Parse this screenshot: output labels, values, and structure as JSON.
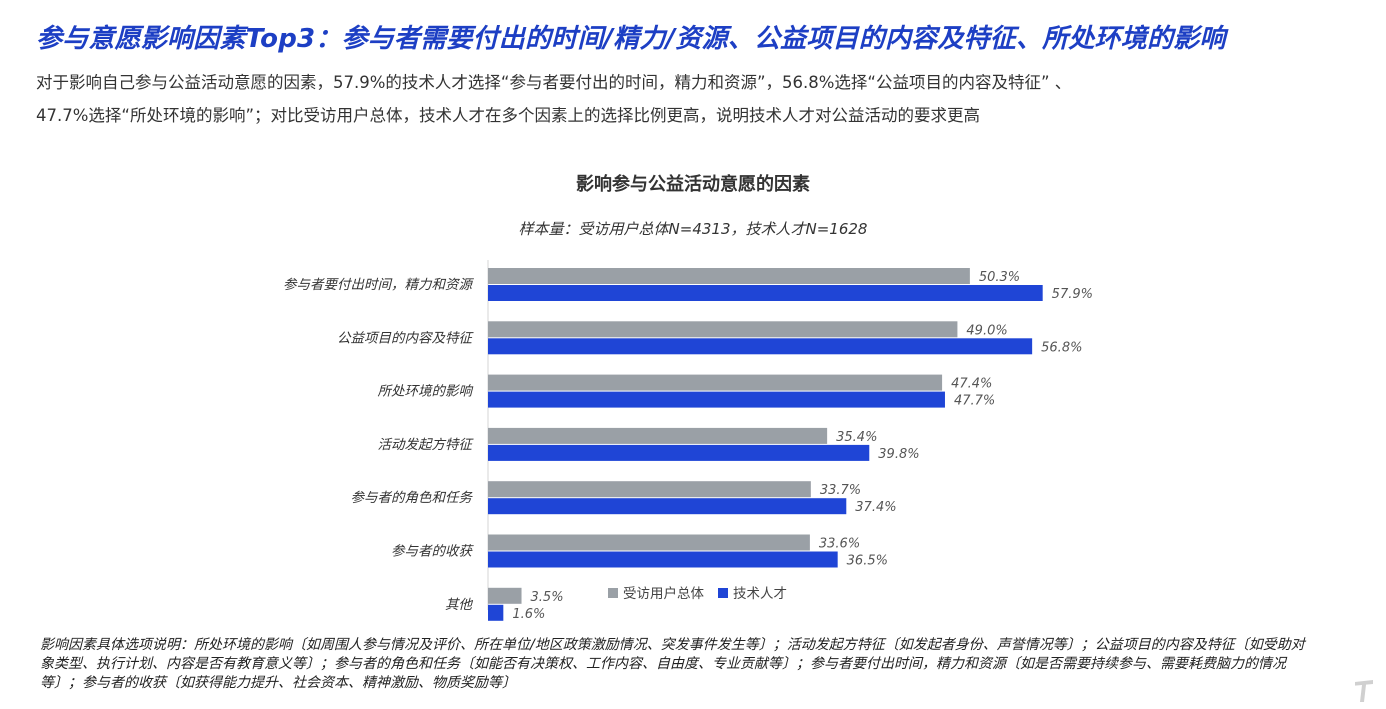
{
  "headline": "参与意愿影响因素Top3：参与者需要付出的时间/精力/资源、公益项目的内容及特征、所处环境的影响",
  "description": [
    "对于影响自己参与公益活动意愿的因素，57.9%的技术人才选择“参与者要付出的时间，精力和资源”，56.8%选择“公益项目的内容及特征”  、",
    "47.7%选择“所处环境的影响”；对比受访用户总体，技术人才在多个因素上的选择比例更高，说明技术人才对公益活动的要求更高"
  ],
  "chart_data": {
    "type": "bar",
    "orientation": "horizontal",
    "title": "影响参与公益活动意愿的因素",
    "subtitle": "样本量：受访用户总体N=4313，技术人才N=1628",
    "categories": [
      "参与者要付出时间，精力和资源",
      "公益项目的内容及特征",
      "所处环境的影响",
      "活动发起方特征",
      "参与者的角色和任务",
      "参与者的收获",
      "其他"
    ],
    "series": [
      {
        "name": "受访用户总体",
        "color": "#9aa0a6",
        "values": [
          50.3,
          49.0,
          47.4,
          35.4,
          33.7,
          33.6,
          3.5
        ],
        "labels": [
          "50.3%",
          "49.0%",
          "47.4%",
          "35.4%",
          "33.7%",
          "33.6%",
          "3.5%"
        ]
      },
      {
        "name": "技术人才",
        "color": "#1f45d6",
        "values": [
          57.9,
          56.8,
          47.7,
          39.8,
          37.4,
          36.5,
          1.6
        ],
        "labels": [
          "57.9%",
          "56.8%",
          "47.7%",
          "39.8%",
          "37.4%",
          "36.5%",
          "1.6%"
        ]
      }
    ],
    "xlim": [
      0,
      70
    ],
    "legend_position": "bottom-center",
    "grid": false
  },
  "footnote": "影响因素具体选项说明：所处环境的影响〔如周围人参与情况及评价、所在单位/地区政策激励情况、突发事件发生等〕；活动发起方特征〔如发起者身份、声誉情况等〕；公益项目的内容及特征〔如受助对象类型、执行计划、内容是否有教育意义等〕；参与者的角色和任务〔如能否有决策权、工作内容、自由度、专业贡献等〕；参与者要付出时间，精力和资源〔如是否需要持续参与、需要耗费脑力的情况等〕；参与者的收获〔如获得能力提升、社会资本、精神激励、物质奖励等〕",
  "logo_icon": "brand-logo-icon"
}
